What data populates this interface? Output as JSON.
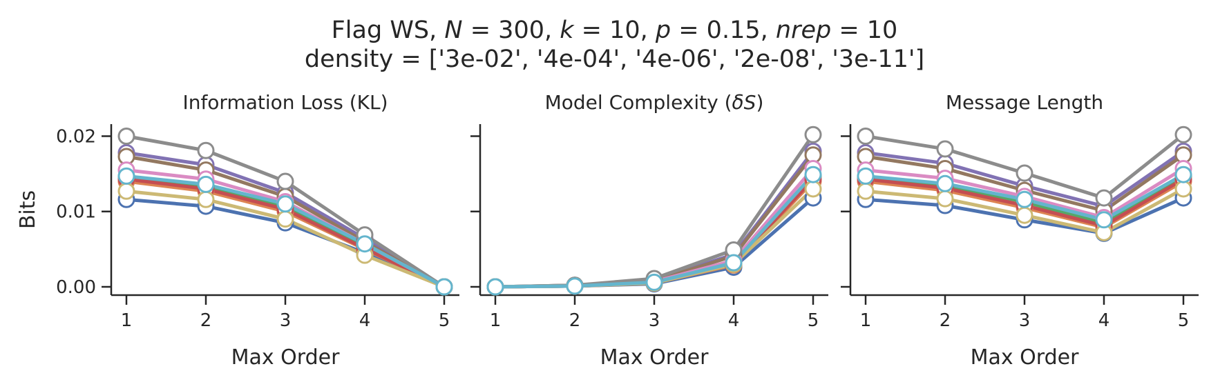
{
  "figure": {
    "title_parts": {
      "prefix": "Flag WS, ",
      "n_sym": "N",
      "n_val": " = 300, ",
      "k_sym": "k",
      "k_val": " = 10, ",
      "p_sym": "p",
      "p_val": " = 0.15, ",
      "nrep_sym": "nrep",
      "nrep_val": " = 10"
    },
    "subtitle": "density = ['3e-02', '4e-04', '4e-06', '2e-08', '3e-11']"
  },
  "chart_data": [
    {
      "type": "line",
      "title": "Information Loss (KL)",
      "xlabel": "Max Order",
      "ylabel": "Bits",
      "x": [
        1,
        2,
        3,
        4,
        5
      ],
      "ylim": [
        -0.0011,
        0.0216
      ],
      "yticks": [
        0.0,
        0.01,
        0.02
      ],
      "ytick_labels": [
        "0.00",
        "0.01",
        "0.02"
      ],
      "grid": false,
      "series": [
        {
          "color": "#4c72b0",
          "values": [
            0.0116,
            0.0107,
            0.0085,
            0.0045,
            0.0
          ]
        },
        {
          "color": "#dd8452",
          "values": [
            0.014,
            0.0127,
            0.01,
            0.005,
            0.0
          ]
        },
        {
          "color": "#55a868",
          "values": [
            0.0146,
            0.0133,
            0.0107,
            0.0053,
            0.0
          ]
        },
        {
          "color": "#c44e52",
          "values": [
            0.0143,
            0.013,
            0.0103,
            0.0051,
            0.0
          ]
        },
        {
          "color": "#8172b3",
          "values": [
            0.0178,
            0.0162,
            0.0125,
            0.0064,
            0.0
          ]
        },
        {
          "color": "#937860",
          "values": [
            0.0173,
            0.0155,
            0.012,
            0.006,
            0.0
          ]
        },
        {
          "color": "#da8bc3",
          "values": [
            0.0155,
            0.0143,
            0.0113,
            0.0057,
            0.0
          ]
        },
        {
          "color": "#8c8c8c",
          "values": [
            0.02,
            0.0181,
            0.014,
            0.0069,
            0.0
          ]
        },
        {
          "color": "#ccb974",
          "values": [
            0.0127,
            0.0116,
            0.009,
            0.0042,
            0.0
          ]
        },
        {
          "color": "#64b5cd",
          "values": [
            0.0147,
            0.0136,
            0.011,
            0.0057,
            0.0
          ]
        }
      ]
    },
    {
      "type": "line",
      "title_parts": {
        "prefix": "Model Complexity (",
        "symbol": "δS",
        "suffix": ")"
      },
      "xlabel": "Max Order",
      "x": [
        1,
        2,
        3,
        4,
        5
      ],
      "ylim": [
        -0.0011,
        0.0216
      ],
      "yticks": [
        0.0,
        0.01,
        0.02
      ],
      "grid": false,
      "series": [
        {
          "color": "#4c72b0",
          "values": [
            0.0,
            0.0001,
            0.0004,
            0.0026,
            0.0118
          ]
        },
        {
          "color": "#dd8452",
          "values": [
            0.0,
            0.0001,
            0.0005,
            0.0029,
            0.014
          ]
        },
        {
          "color": "#55a868",
          "values": [
            0.0,
            0.0001,
            0.0006,
            0.0031,
            0.0147
          ]
        },
        {
          "color": "#c44e52",
          "values": [
            0.0,
            0.0001,
            0.0005,
            0.003,
            0.0143
          ]
        },
        {
          "color": "#8172b3",
          "values": [
            0.0,
            0.0002,
            0.0009,
            0.0043,
            0.018
          ]
        },
        {
          "color": "#937860",
          "values": [
            0.0,
            0.0002,
            0.0008,
            0.0041,
            0.0175
          ]
        },
        {
          "color": "#da8bc3",
          "values": [
            0.0,
            0.0001,
            0.0007,
            0.0035,
            0.0157
          ]
        },
        {
          "color": "#8c8c8c",
          "values": [
            0.0,
            0.0002,
            0.0011,
            0.0049,
            0.0202
          ]
        },
        {
          "color": "#ccb974",
          "values": [
            0.0,
            0.0001,
            0.0005,
            0.003,
            0.013
          ]
        },
        {
          "color": "#64b5cd",
          "values": [
            0.0,
            0.0001,
            0.0006,
            0.0032,
            0.0149
          ]
        }
      ]
    },
    {
      "type": "line",
      "title": "Message Length",
      "xlabel": "Max Order",
      "x": [
        1,
        2,
        3,
        4,
        5
      ],
      "ylim": [
        -0.0011,
        0.0216
      ],
      "yticks": [
        0.0,
        0.01,
        0.02
      ],
      "grid": false,
      "series": [
        {
          "color": "#4c72b0",
          "values": [
            0.0116,
            0.0108,
            0.0089,
            0.0071,
            0.0118
          ]
        },
        {
          "color": "#dd8452",
          "values": [
            0.014,
            0.0128,
            0.0105,
            0.0079,
            0.014
          ]
        },
        {
          "color": "#55a868",
          "values": [
            0.0146,
            0.0134,
            0.0113,
            0.0084,
            0.0147
          ]
        },
        {
          "color": "#c44e52",
          "values": [
            0.0143,
            0.0131,
            0.0108,
            0.0081,
            0.0143
          ]
        },
        {
          "color": "#8172b3",
          "values": [
            0.0178,
            0.0164,
            0.0134,
            0.0107,
            0.018
          ]
        },
        {
          "color": "#937860",
          "values": [
            0.0173,
            0.0157,
            0.0128,
            0.0101,
            0.0175
          ]
        },
        {
          "color": "#da8bc3",
          "values": [
            0.0155,
            0.0144,
            0.012,
            0.0092,
            0.0157
          ]
        },
        {
          "color": "#8c8c8c",
          "values": [
            0.02,
            0.0183,
            0.0151,
            0.0118,
            0.0202
          ]
        },
        {
          "color": "#ccb974",
          "values": [
            0.0127,
            0.0117,
            0.0095,
            0.0072,
            0.013
          ]
        },
        {
          "color": "#64b5cd",
          "values": [
            0.0147,
            0.0137,
            0.0116,
            0.0089,
            0.0149
          ]
        }
      ]
    }
  ]
}
